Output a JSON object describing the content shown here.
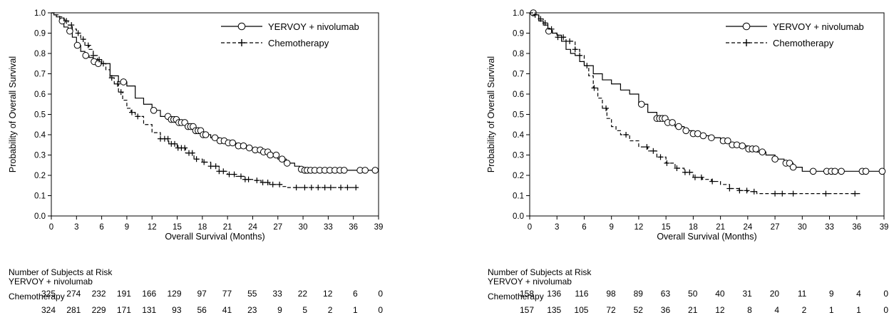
{
  "chart_data": [
    {
      "type": "line",
      "subtype": "kaplan-meier",
      "xlabel": "Overall Survival (Months)",
      "ylabel": "Probability of Overall Survival",
      "xlim": [
        0,
        39
      ],
      "ylim": [
        0,
        1
      ],
      "x_ticks": [
        "0",
        "3",
        "6",
        "9",
        "12",
        "15",
        "18",
        "21",
        "24",
        "27",
        "30",
        "33",
        "36",
        "39"
      ],
      "y_ticks": [
        "0.0",
        "0.1",
        "0.2",
        "0.3",
        "0.4",
        "0.5",
        "0.6",
        "0.7",
        "0.8",
        "0.9",
        "1.0"
      ],
      "legend_position": "top-right",
      "series": [
        {
          "name": "YERVOY + nivolumab",
          "line_style": "solid",
          "marker": "circle",
          "points": [
            [
              0,
              1.0
            ],
            [
              0.3,
              0.99
            ],
            [
              0.6,
              0.98
            ],
            [
              1,
              0.96
            ],
            [
              1.5,
              0.93
            ],
            [
              2,
              0.91
            ],
            [
              2.5,
              0.88
            ],
            [
              3,
              0.84
            ],
            [
              3.5,
              0.81
            ],
            [
              4,
              0.79
            ],
            [
              4.5,
              0.78
            ],
            [
              5,
              0.76
            ],
            [
              5.5,
              0.75
            ],
            [
              6,
              0.75
            ],
            [
              7,
              0.69
            ],
            [
              8,
              0.66
            ],
            [
              9,
              0.64
            ],
            [
              10,
              0.58
            ],
            [
              11,
              0.55
            ],
            [
              12,
              0.52
            ],
            [
              13,
              0.49
            ],
            [
              14,
              0.475
            ],
            [
              15,
              0.46
            ],
            [
              16,
              0.44
            ],
            [
              17,
              0.42
            ],
            [
              18,
              0.4
            ],
            [
              19,
              0.385
            ],
            [
              20,
              0.37
            ],
            [
              21,
              0.36
            ],
            [
              22,
              0.345
            ],
            [
              23,
              0.335
            ],
            [
              24,
              0.325
            ],
            [
              25,
              0.315
            ],
            [
              26,
              0.3
            ],
            [
              27,
              0.28
            ],
            [
              28,
              0.26
            ],
            [
              29,
              0.245
            ],
            [
              29.6,
              0.23
            ],
            [
              30,
              0.225
            ],
            [
              39,
              0.225
            ]
          ],
          "censored": [
            1.3,
            2.2,
            3.1,
            4.1,
            5.1,
            5.6,
            8.6,
            12.2,
            13.9,
            14.3,
            14.6,
            14.9,
            15.2,
            15.5,
            15.9,
            16.3,
            16.6,
            16.9,
            17.2,
            17.5,
            17.8,
            18.1,
            18.4,
            19.5,
            20.1,
            20.6,
            21.1,
            21.6,
            22.3,
            22.9,
            23.6,
            24.3,
            24.9,
            25.3,
            25.8,
            26.1,
            26.8,
            27.5,
            28.1,
            29.8,
            30.2,
            30.5,
            30.9,
            31.4,
            32.0,
            32.6,
            33.2,
            33.8,
            34.4,
            34.9,
            36.8,
            37.4,
            38.6
          ]
        },
        {
          "name": "Chemotherapy",
          "line_style": "dashed",
          "marker": "plus",
          "points": [
            [
              0,
              1.0
            ],
            [
              0.5,
              0.99
            ],
            [
              1,
              0.98
            ],
            [
              1.5,
              0.96
            ],
            [
              2,
              0.94
            ],
            [
              2.5,
              0.92
            ],
            [
              3,
              0.9
            ],
            [
              3.5,
              0.87
            ],
            [
              4,
              0.84
            ],
            [
              4.5,
              0.82
            ],
            [
              5,
              0.79
            ],
            [
              5.5,
              0.77
            ],
            [
              6,
              0.75
            ],
            [
              6.5,
              0.72
            ],
            [
              7,
              0.68
            ],
            [
              7.5,
              0.65
            ],
            [
              8,
              0.61
            ],
            [
              8.5,
              0.57
            ],
            [
              9,
              0.53
            ],
            [
              9.5,
              0.51
            ],
            [
              10,
              0.49
            ],
            [
              11,
              0.45
            ],
            [
              12,
              0.41
            ],
            [
              13,
              0.38
            ],
            [
              14,
              0.355
            ],
            [
              15,
              0.335
            ],
            [
              16,
              0.31
            ],
            [
              17,
              0.28
            ],
            [
              18,
              0.265
            ],
            [
              19,
              0.245
            ],
            [
              20,
              0.22
            ],
            [
              21,
              0.205
            ],
            [
              22,
              0.195
            ],
            [
              23,
              0.18
            ],
            [
              24,
              0.175
            ],
            [
              25,
              0.165
            ],
            [
              26,
              0.155
            ],
            [
              27,
              0.155
            ],
            [
              27.5,
              0.145
            ],
            [
              28,
              0.14
            ],
            [
              36.5,
              0.14
            ]
          ],
          "censored": [
            1.8,
            2.4,
            3.2,
            3.8,
            4.4,
            5.0,
            5.7,
            6.2,
            7.2,
            7.9,
            8.3,
            9.6,
            10.3,
            13.0,
            13.5,
            13.9,
            14.3,
            14.7,
            15.1,
            15.5,
            15.9,
            16.4,
            16.8,
            17.3,
            18.2,
            19.0,
            19.6,
            20.0,
            20.5,
            21.2,
            21.8,
            22.6,
            23.1,
            23.5,
            24.5,
            25.2,
            25.8,
            26.4,
            27.2,
            29.2,
            30.2,
            31.0,
            31.8,
            32.6,
            33.3,
            34.5,
            35.3,
            36.3
          ]
        }
      ],
      "risk_table": {
        "title": "Number of Subjects at Risk",
        "rows": [
          {
            "label": "YERVOY + nivolumab",
            "values": [
              "325",
              "274",
              "232",
              "191",
              "166",
              "129",
              "97",
              "77",
              "55",
              "33",
              "22",
              "12",
              "6",
              "0"
            ]
          },
          {
            "label": "Chemotherapy",
            "values": [
              "324",
              "281",
              "229",
              "171",
              "131",
              "93",
              "56",
              "41",
              "23",
              "9",
              "5",
              "2",
              "1",
              "0"
            ]
          }
        ]
      }
    },
    {
      "type": "line",
      "subtype": "kaplan-meier",
      "xlabel": "Overall Survival (Months)",
      "ylabel": "Probability of Overall Survival",
      "xlim": [
        0,
        39
      ],
      "ylim": [
        0,
        1
      ],
      "x_ticks": [
        "0",
        "3",
        "6",
        "9",
        "12",
        "15",
        "18",
        "21",
        "24",
        "27",
        "30",
        "33",
        "36",
        "39"
      ],
      "y_ticks": [
        "0.0",
        "0.1",
        "0.2",
        "0.3",
        "0.4",
        "0.5",
        "0.6",
        "0.7",
        "0.8",
        "0.9",
        "1.0"
      ],
      "legend_position": "top-right",
      "series": [
        {
          "name": "YERVOY + nivolumab",
          "line_style": "solid",
          "marker": "circle",
          "points": [
            [
              0,
              1.0
            ],
            [
              0.5,
              0.99
            ],
            [
              1,
              0.96
            ],
            [
              1.5,
              0.94
            ],
            [
              2,
              0.91
            ],
            [
              2.5,
              0.9
            ],
            [
              3,
              0.89
            ],
            [
              3.5,
              0.86
            ],
            [
              4,
              0.82
            ],
            [
              4.5,
              0.8
            ],
            [
              5,
              0.79
            ],
            [
              5.5,
              0.76
            ],
            [
              6,
              0.74
            ],
            [
              7,
              0.7
            ],
            [
              8,
              0.67
            ],
            [
              9,
              0.65
            ],
            [
              10,
              0.62
            ],
            [
              11,
              0.6
            ],
            [
              12,
              0.55
            ],
            [
              13,
              0.51
            ],
            [
              14,
              0.48
            ],
            [
              15,
              0.46
            ],
            [
              16,
              0.44
            ],
            [
              17,
              0.42
            ],
            [
              18,
              0.405
            ],
            [
              19,
              0.395
            ],
            [
              20,
              0.385
            ],
            [
              21,
              0.37
            ],
            [
              22,
              0.35
            ],
            [
              23,
              0.345
            ],
            [
              24,
              0.33
            ],
            [
              25,
              0.315
            ],
            [
              26,
              0.3
            ],
            [
              27,
              0.28
            ],
            [
              28,
              0.26
            ],
            [
              29,
              0.24
            ],
            [
              30,
              0.22
            ],
            [
              39,
              0.22
            ]
          ],
          "censored": [
            0.4,
            2.1,
            12.3,
            14.0,
            14.3,
            14.6,
            14.9,
            15.2,
            15.7,
            16.4,
            17.2,
            18.0,
            18.5,
            19.1,
            20.0,
            21.3,
            21.8,
            22.3,
            22.8,
            23.4,
            24.1,
            24.5,
            24.9,
            25.6,
            27.0,
            28.2,
            28.6,
            29.0,
            31.2,
            32.7,
            33.2,
            33.6,
            34.3,
            36.6,
            37.0,
            38.8
          ]
        },
        {
          "name": "Chemotherapy",
          "line_style": "dashed",
          "marker": "plus",
          "points": [
            [
              0,
              1.0
            ],
            [
              0.5,
              0.99
            ],
            [
              1,
              0.97
            ],
            [
              1.5,
              0.95
            ],
            [
              2,
              0.92
            ],
            [
              2.5,
              0.9
            ],
            [
              3,
              0.88
            ],
            [
              4,
              0.86
            ],
            [
              5,
              0.82
            ],
            [
              5.5,
              0.79
            ],
            [
              6,
              0.74
            ],
            [
              6.5,
              0.69
            ],
            [
              7,
              0.63
            ],
            [
              7.5,
              0.58
            ],
            [
              8,
              0.53
            ],
            [
              8.5,
              0.48
            ],
            [
              9,
              0.44
            ],
            [
              9.5,
              0.42
            ],
            [
              10,
              0.4
            ],
            [
              11,
              0.37
            ],
            [
              12,
              0.34
            ],
            [
              13,
              0.32
            ],
            [
              14,
              0.29
            ],
            [
              15,
              0.26
            ],
            [
              16,
              0.235
            ],
            [
              17,
              0.215
            ],
            [
              18,
              0.19
            ],
            [
              19,
              0.18
            ],
            [
              20,
              0.17
            ],
            [
              21,
              0.155
            ],
            [
              22,
              0.135
            ],
            [
              23,
              0.125
            ],
            [
              24,
              0.12
            ],
            [
              25,
              0.11
            ],
            [
              36.5,
              0.11
            ]
          ],
          "censored": [
            0.6,
            1.2,
            1.7,
            2.4,
            3.1,
            3.7,
            4.4,
            5.0,
            5.5,
            6.3,
            7.1,
            8.4,
            10.6,
            12.9,
            13.6,
            14.4,
            15.1,
            16.2,
            17.1,
            17.6,
            18.2,
            18.9,
            20.1,
            22.0,
            23.1,
            23.9,
            24.7,
            27.0,
            27.8,
            29.0,
            32.6,
            35.8
          ]
        }
      ],
      "risk_table": {
        "title": "Number of Subjects at Risk",
        "rows": [
          {
            "label": "YERVOY + nivolumab",
            "values": [
              "158",
              "136",
              "116",
              "98",
              "89",
              "63",
              "50",
              "40",
              "31",
              "20",
              "11",
              "9",
              "4",
              "0"
            ]
          },
          {
            "label": "Chemotherapy",
            "values": [
              "157",
              "135",
              "105",
              "72",
              "52",
              "36",
              "21",
              "12",
              "8",
              "4",
              "2",
              "1",
              "1",
              "0"
            ]
          }
        ]
      }
    }
  ]
}
